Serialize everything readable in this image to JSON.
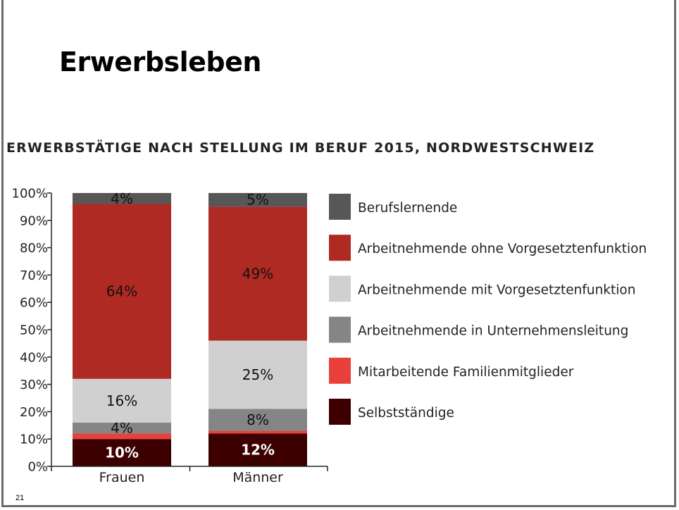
{
  "slide": {
    "title": "Erwerbsleben",
    "page_number": "21"
  },
  "chart_data": {
    "type": "bar",
    "stacked": true,
    "title": "ERWERBSTÄTIGE NACH STELLUNG IM BERUF 2015, NORDWESTSCHWEIZ",
    "xlabel": "",
    "ylabel": "",
    "ylim": [
      0,
      100
    ],
    "yticks": [
      "0%",
      "10%",
      "20%",
      "30%",
      "40%",
      "50%",
      "60%",
      "70%",
      "80%",
      "90%",
      "100%"
    ],
    "categories": [
      "Frauen",
      "Männer"
    ],
    "series": [
      {
        "name": "Selbstständige",
        "color": "#3d0000",
        "values": [
          10,
          12
        ],
        "labels": [
          "10%",
          "12%"
        ],
        "label_color": "#ffffff",
        "label_bold": true
      },
      {
        "name": "Mitarbeitende Familienmitglieder",
        "color": "#e8403a",
        "values": [
          2,
          1
        ],
        "labels": [
          "",
          ""
        ]
      },
      {
        "name": "Arbeitnehmende in Unternehmensleitung",
        "color": "#858585",
        "values": [
          4,
          8
        ],
        "labels": [
          "4%",
          "8%"
        ]
      },
      {
        "name": "Arbeitnehmende mit Vorgesetztenfunktion",
        "color": "#d0d0d0",
        "values": [
          16,
          25
        ],
        "labels": [
          "16%",
          "25%"
        ]
      },
      {
        "name": "Arbeitnehmende ohne Vorgesetztenfunktion",
        "color": "#b02a24",
        "values": [
          64,
          49
        ],
        "labels": [
          "64%",
          "49%"
        ]
      },
      {
        "name": "Berufslernende",
        "color": "#575757",
        "values": [
          4,
          5
        ],
        "labels": [
          "4%",
          "5%"
        ]
      }
    ],
    "legend_order": [
      "Berufslernende",
      "Arbeitnehmende ohne Vorgesetztenfunktion",
      "Arbeitnehmende mit Vorgesetztenfunktion",
      "Arbeitnehmende in Unternehmensleitung",
      "Mitarbeitende Familienmitglieder",
      "Selbstständige"
    ],
    "legend_position": "right",
    "grid": false
  }
}
